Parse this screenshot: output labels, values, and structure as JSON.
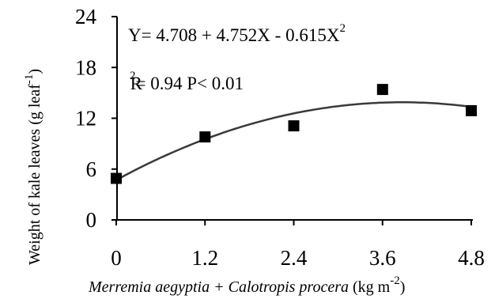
{
  "chart_data": {
    "type": "scatter",
    "title": "",
    "xlabel": {
      "italic": "Merremia aegyptia + Calotropis procera",
      "unit_prefix": " (kg m",
      "unit_sup": "-2",
      "unit_suffix": ")"
    },
    "ylabel": {
      "main": "Weight of kale leaves (g leaf",
      "sup": "-1",
      "suffix": ")"
    },
    "xlim": [
      0,
      4.8
    ],
    "ylim": [
      0,
      24
    ],
    "x_ticks": [
      "0",
      "1.2",
      "2.4",
      "3.6",
      "4.8"
    ],
    "y_ticks": [
      "0",
      "6",
      "12",
      "18",
      "24"
    ],
    "x_tick_values": [
      0,
      1.2,
      2.4,
      3.6,
      4.8
    ],
    "y_tick_values": [
      0,
      6,
      12,
      18,
      24
    ],
    "points": [
      {
        "x": 0,
        "y": 4.9
      },
      {
        "x": 1.2,
        "y": 9.8
      },
      {
        "x": 2.4,
        "y": 11.1
      },
      {
        "x": 3.6,
        "y": 15.4
      },
      {
        "x": 4.8,
        "y": 12.9
      }
    ],
    "fit": {
      "a": 4.708,
      "b": 4.752,
      "c": -0.615
    },
    "grid": false,
    "marker": "filled-square",
    "line_color": "#3a3a3a",
    "marker_color": "#000000",
    "annotations": {
      "equation_main": "Y= 4.708 + 4.752X - 0.615X",
      "equation_sup": "2",
      "r2_R": "R",
      "r2_sup": "2",
      "r2_rest": "= 0.94  P< 0.01"
    }
  }
}
